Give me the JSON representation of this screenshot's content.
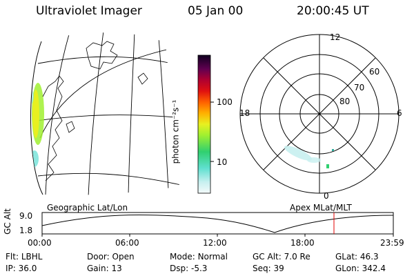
{
  "header": {
    "title": "Ultraviolet Imager",
    "date": "05 Jan 00",
    "time": "20:00:45 UT"
  },
  "colorbar": {
    "label": "photon cm⁻²s⁻¹",
    "ticks": [
      "100",
      "10"
    ],
    "colors": [
      "#e8f4f8",
      "#8ee8e0",
      "#30d0b0",
      "#40e060",
      "#a0f030",
      "#e8f020",
      "#ffb000",
      "#ff6000",
      "#e01010",
      "#c00020",
      "#800040",
      "#400050",
      "#100020"
    ]
  },
  "polar": {
    "labels": {
      "top": "12",
      "left": "18",
      "right": "6",
      "bottom": "0"
    },
    "rings": [
      "60",
      "70",
      "80"
    ]
  },
  "altitude_plot": {
    "ylabel": "GC Alt",
    "yticks": [
      "9.0",
      "1.8"
    ],
    "left_title": "Geographic Lat/Lon",
    "right_title": "Apex MLat/MLT",
    "xticks": [
      "00:00",
      "06:00",
      "12:00",
      "18:00",
      "23:59"
    ],
    "marker_color": "#e00000"
  },
  "info": {
    "row1": [
      {
        "key": "Flt:",
        "value": "LBHL"
      },
      {
        "key": "Door:",
        "value": "Open"
      },
      {
        "key": "Mode:",
        "value": "Normal"
      },
      {
        "key": "GC Alt:",
        "value": "7.0 Re"
      },
      {
        "key": "GLat:",
        "value": "46.3"
      }
    ],
    "row2": [
      {
        "key": "IP:",
        "value": "36.0"
      },
      {
        "key": "Gain:",
        "value": "13"
      },
      {
        "key": "Dsp:",
        "value": "-5.3"
      },
      {
        "key": "Seq:",
        "value": "39"
      },
      {
        "key": "GLon:",
        "value": "342.4"
      }
    ]
  }
}
